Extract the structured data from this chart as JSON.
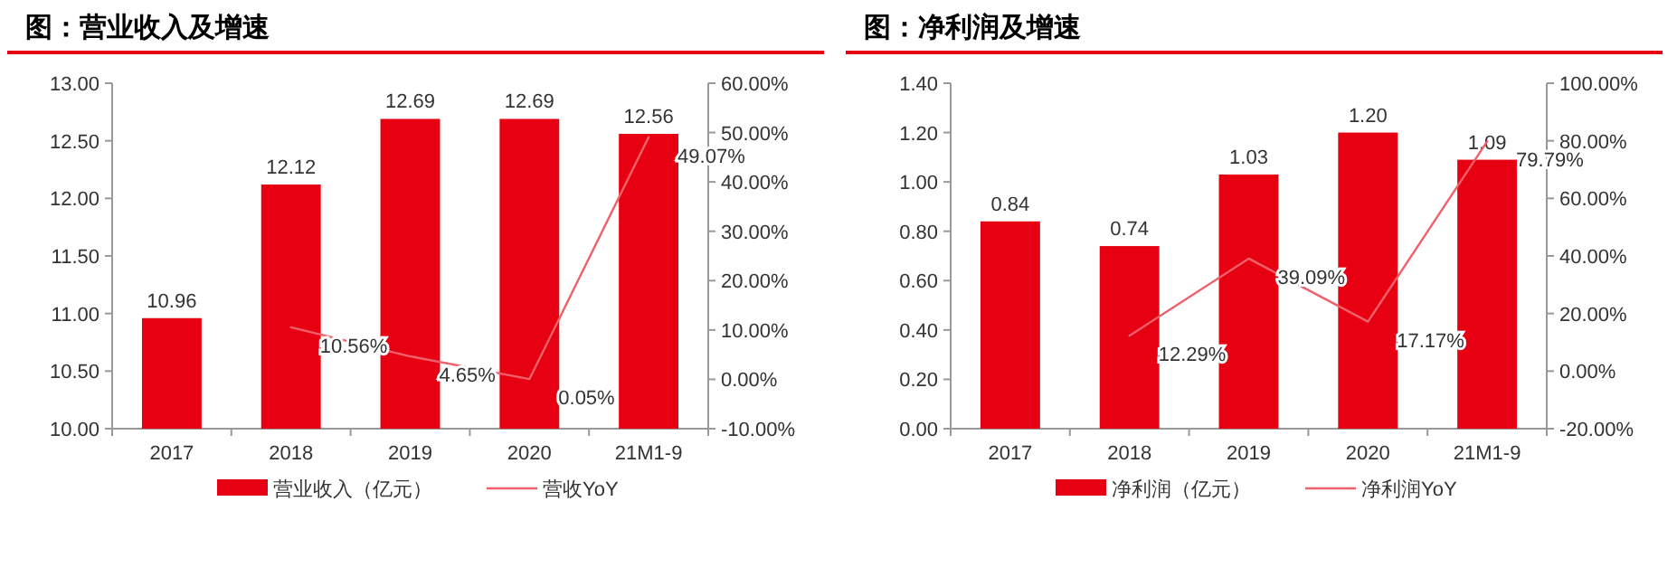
{
  "chart_data": [
    {
      "type": "bar",
      "title": "图：营业收入及增速",
      "categories": [
        "2017",
        "2018",
        "2019",
        "2020",
        "21M1-9"
      ],
      "ylim": [
        10,
        13
      ],
      "yticks": [
        {
          "value": 10,
          "label": "10.00"
        },
        {
          "value": 10.5,
          "label": "10.50"
        },
        {
          "value": 11,
          "label": "11.00"
        },
        {
          "value": 11.5,
          "label": "11.50"
        },
        {
          "value": 12,
          "label": "12.00"
        },
        {
          "value": 12.5,
          "label": "12.50"
        },
        {
          "value": 13,
          "label": "13.00"
        }
      ],
      "y2lim": [
        -10,
        60
      ],
      "y2ticks": [
        {
          "value": -10,
          "label": "-10.00%"
        },
        {
          "value": 0,
          "label": "0.00%"
        },
        {
          "value": 10,
          "label": "10.00%"
        },
        {
          "value": 20,
          "label": "20.00%"
        },
        {
          "value": 30,
          "label": "30.00%"
        },
        {
          "value": 40,
          "label": "40.00%"
        },
        {
          "value": 50,
          "label": "50.00%"
        },
        {
          "value": 60,
          "label": "60.00%"
        }
      ],
      "grid": false,
      "legend": "bottom",
      "series": [
        {
          "name": "营业收入（亿元）",
          "color": "#e60012",
          "values": [
            10.96,
            12.12,
            12.69,
            12.69,
            12.56
          ],
          "value_labels": [
            "10.96",
            "12.12",
            "12.69",
            "12.69",
            "12.56"
          ]
        },
        {
          "name": "营收YoY",
          "type": "line",
          "axis": "y2",
          "color": "#f0606a",
          "values": [
            null,
            10.56,
            4.65,
            0.05,
            49.07
          ],
          "value_labels": [
            null,
            "10.56%",
            "4.65%",
            "0.05%",
            "49.07%"
          ]
        }
      ]
    },
    {
      "type": "bar",
      "title": "图：净利润及增速",
      "categories": [
        "2017",
        "2018",
        "2019",
        "2020",
        "21M1-9"
      ],
      "ylim": [
        0,
        1.4
      ],
      "yticks": [
        {
          "value": 0,
          "label": "0.00"
        },
        {
          "value": 0.2,
          "label": "0.20"
        },
        {
          "value": 0.4,
          "label": "0.40"
        },
        {
          "value": 0.6,
          "label": "0.60"
        },
        {
          "value": 0.8,
          "label": "0.80"
        },
        {
          "value": 1,
          "label": "1.00"
        },
        {
          "value": 1.2,
          "label": "1.20"
        },
        {
          "value": 1.4,
          "label": "1.40"
        }
      ],
      "y2lim": [
        -20,
        100
      ],
      "y2ticks": [
        {
          "value": -20,
          "label": "-20.00%"
        },
        {
          "value": 0,
          "label": "0.00%"
        },
        {
          "value": 20,
          "label": "20.00%"
        },
        {
          "value": 40,
          "label": "40.00%"
        },
        {
          "value": 60,
          "label": "60.00%"
        },
        {
          "value": 80,
          "label": "80.00%"
        },
        {
          "value": 100,
          "label": "100.00%"
        }
      ],
      "grid": false,
      "legend": "bottom",
      "series": [
        {
          "name": "净利润（亿元）",
          "color": "#e60012",
          "values": [
            0.84,
            0.74,
            1.03,
            1.2,
            1.09
          ],
          "value_labels": [
            "0.84",
            "0.74",
            "1.03",
            "1.20",
            "1.09"
          ]
        },
        {
          "name": "净利润YoY",
          "type": "line",
          "axis": "y2",
          "color": "#f0606a",
          "values": [
            null,
            12.29,
            39.09,
            17.17,
            79.79
          ],
          "value_labels": [
            null,
            "12.29%",
            "39.09%",
            "17.17%",
            "79.79%"
          ]
        }
      ]
    }
  ]
}
